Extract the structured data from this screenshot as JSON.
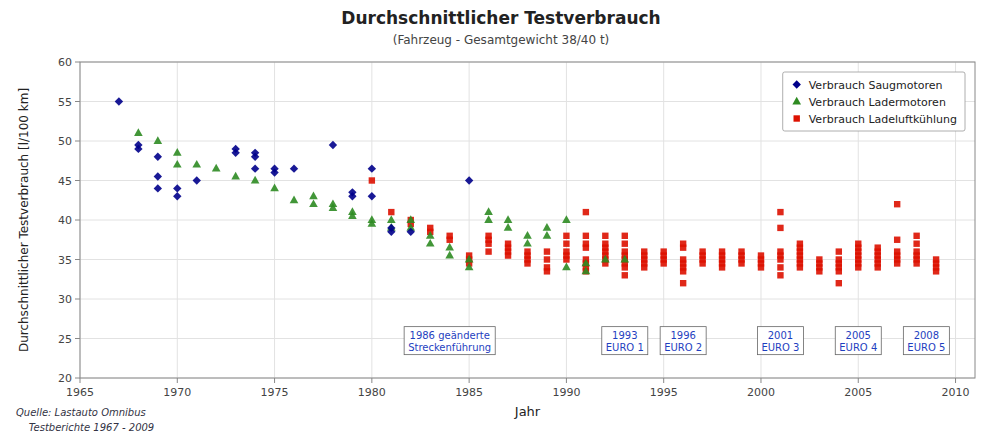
{
  "chart_data": {
    "type": "scatter",
    "title": "Durchschnittlicher Testverbrauch",
    "subtitle": "(Fahrzeug - Gesamtgewicht 38/40 t)",
    "x_label": "Jahr",
    "y_label": "Durchschnittlicher Testverbrauch [l/100 km]",
    "xlim": [
      1965,
      2011
    ],
    "ylim": [
      20,
      60
    ],
    "xticks": [
      1965,
      1970,
      1975,
      1980,
      1985,
      1990,
      1995,
      2000,
      2005,
      2010
    ],
    "yticks": [
      20,
      25,
      30,
      35,
      40,
      45,
      50,
      55,
      60
    ],
    "grid": true,
    "legend": "upper right",
    "series": [
      {
        "name": "Verbrauch Saugmotoren",
        "color": "#00008B",
        "marker": "diamond",
        "x": [
          1967,
          1968,
          1968,
          1969,
          1969,
          1969,
          1970,
          1970,
          1971,
          1973,
          1973,
          1974,
          1974,
          1974,
          1975,
          1975,
          1976,
          1978,
          1979,
          1979,
          1980,
          1980,
          1981,
          1981,
          1982,
          1985
        ],
        "values": [
          55,
          49.5,
          49,
          48,
          44,
          45.5,
          43,
          44,
          45,
          48.5,
          49,
          48,
          46.5,
          48.5,
          46.5,
          46,
          46.5,
          49.5,
          43,
          43.5,
          46.5,
          43,
          38.5,
          39,
          38.5,
          45
        ]
      },
      {
        "name": "Verbrauch Ladermotoren",
        "color": "#2E8B22",
        "marker": "triangle",
        "x": [
          1968,
          1969,
          1970,
          1970,
          1971,
          1972,
          1973,
          1974,
          1975,
          1976,
          1977,
          1977,
          1978,
          1978,
          1979,
          1979,
          1980,
          1980,
          1981,
          1981,
          1982,
          1982,
          1983,
          1983,
          1984,
          1984,
          1985,
          1985,
          1986,
          1986,
          1987,
          1987,
          1988,
          1988,
          1989,
          1989,
          1990,
          1990,
          1991,
          1991,
          1992,
          1993
        ],
        "values": [
          51,
          50,
          47,
          48.5,
          47,
          46.5,
          45.5,
          45,
          44,
          42.5,
          42,
          43,
          42,
          41.5,
          41,
          40.5,
          40,
          39.5,
          40,
          39,
          39,
          40,
          38,
          37,
          36.5,
          35.5,
          35,
          34,
          40,
          41,
          40,
          39,
          38,
          37,
          39,
          38,
          40,
          34,
          33.5,
          34.5,
          35,
          35
        ]
      },
      {
        "name": "Verbrauch Ladeluftkühlung",
        "color": "#DD1100",
        "marker": "square",
        "x": [
          1980,
          1981,
          1982,
          1982,
          1983,
          1983,
          1984,
          1984,
          1985,
          1985,
          1985,
          1986,
          1986,
          1986,
          1986,
          1987,
          1987,
          1987,
          1987,
          1988,
          1988,
          1988,
          1988,
          1989,
          1989,
          1989,
          1989,
          1990,
          1990,
          1990,
          1990,
          1990,
          1991,
          1991,
          1991,
          1991,
          1991,
          1991,
          1991,
          1991,
          1992,
          1992,
          1992,
          1992,
          1992,
          1992,
          1992,
          1993,
          1993,
          1993,
          1993,
          1993,
          1993,
          1993,
          1993,
          1994,
          1994,
          1994,
          1994,
          1994,
          1995,
          1995,
          1995,
          1995,
          1996,
          1996,
          1996,
          1996,
          1996,
          1996,
          1996,
          1997,
          1997,
          1997,
          1997,
          1998,
          1998,
          1998,
          1998,
          1998,
          1999,
          1999,
          1999,
          1999,
          2000,
          2000,
          2000,
          2000,
          2001,
          2001,
          2001,
          2001,
          2001,
          2001,
          2001,
          2002,
          2002,
          2002,
          2002,
          2002,
          2002,
          2002,
          2003,
          2003,
          2003,
          2003,
          2004,
          2004,
          2004,
          2004,
          2004,
          2004,
          2005,
          2005,
          2005,
          2005,
          2005,
          2005,
          2005,
          2006,
          2006,
          2006,
          2006,
          2006,
          2006,
          2007,
          2007,
          2007,
          2007,
          2007,
          2007,
          2008,
          2008,
          2008,
          2008,
          2008,
          2008,
          2009,
          2009,
          2009,
          2009
        ],
        "values": [
          45,
          41,
          40,
          39.5,
          38.5,
          39,
          38,
          37.5,
          35,
          34.5,
          35.5,
          36,
          37,
          37.5,
          38,
          36.5,
          37,
          36,
          35.5,
          35,
          34.5,
          35.5,
          36,
          35,
          34,
          33.5,
          36,
          35,
          35.5,
          36,
          37,
          38,
          41,
          38,
          37,
          36.5,
          35,
          34.5,
          34,
          33.5,
          35,
          34.5,
          36,
          37,
          38,
          36.5,
          35.5,
          37,
          36,
          35.5,
          35,
          34.5,
          34,
          33,
          38,
          36,
          35.5,
          35,
          34.5,
          34,
          35.5,
          35,
          34.5,
          36,
          35,
          34.5,
          34,
          33.5,
          36.5,
          37,
          32,
          35.5,
          35,
          36,
          34.5,
          36,
          35.5,
          35,
          34.5,
          34,
          35,
          36,
          35.5,
          34.5,
          35,
          34.5,
          34,
          35.5,
          35.5,
          35,
          34,
          36,
          33,
          39,
          41,
          35,
          34.5,
          34,
          35.5,
          36,
          37,
          36.5,
          35,
          34.5,
          34,
          33.5,
          35,
          34.5,
          34,
          33.5,
          36,
          32,
          35.5,
          35,
          34.5,
          34,
          36.5,
          36,
          37,
          35.5,
          35,
          34.5,
          34,
          36,
          36.5,
          35.5,
          35,
          34.5,
          36,
          37.5,
          42,
          36,
          35.5,
          35,
          34.5,
          38,
          37,
          34.5,
          34,
          35,
          33.5
        ]
      }
    ],
    "annotations": [
      {
        "x": 1984.0,
        "y": 26.5,
        "text": "1986 geänderte\nStreckenführung"
      },
      {
        "x": 1993.0,
        "y": 26.5,
        "text": "1993\nEURO 1"
      },
      {
        "x": 1996.0,
        "y": 26.5,
        "text": "1996\nEURO 2"
      },
      {
        "x": 2001.0,
        "y": 26.5,
        "text": "2001\nEURO 3"
      },
      {
        "x": 2005.0,
        "y": 26.5,
        "text": "2005\nEURO 4"
      },
      {
        "x": 2008.5,
        "y": 26.5,
        "text": "2008\nEURO 5"
      }
    ],
    "source": [
      "Quelle: Lastauto Omnibus",
      "    Testberichte 1967 - 2009"
    ]
  }
}
